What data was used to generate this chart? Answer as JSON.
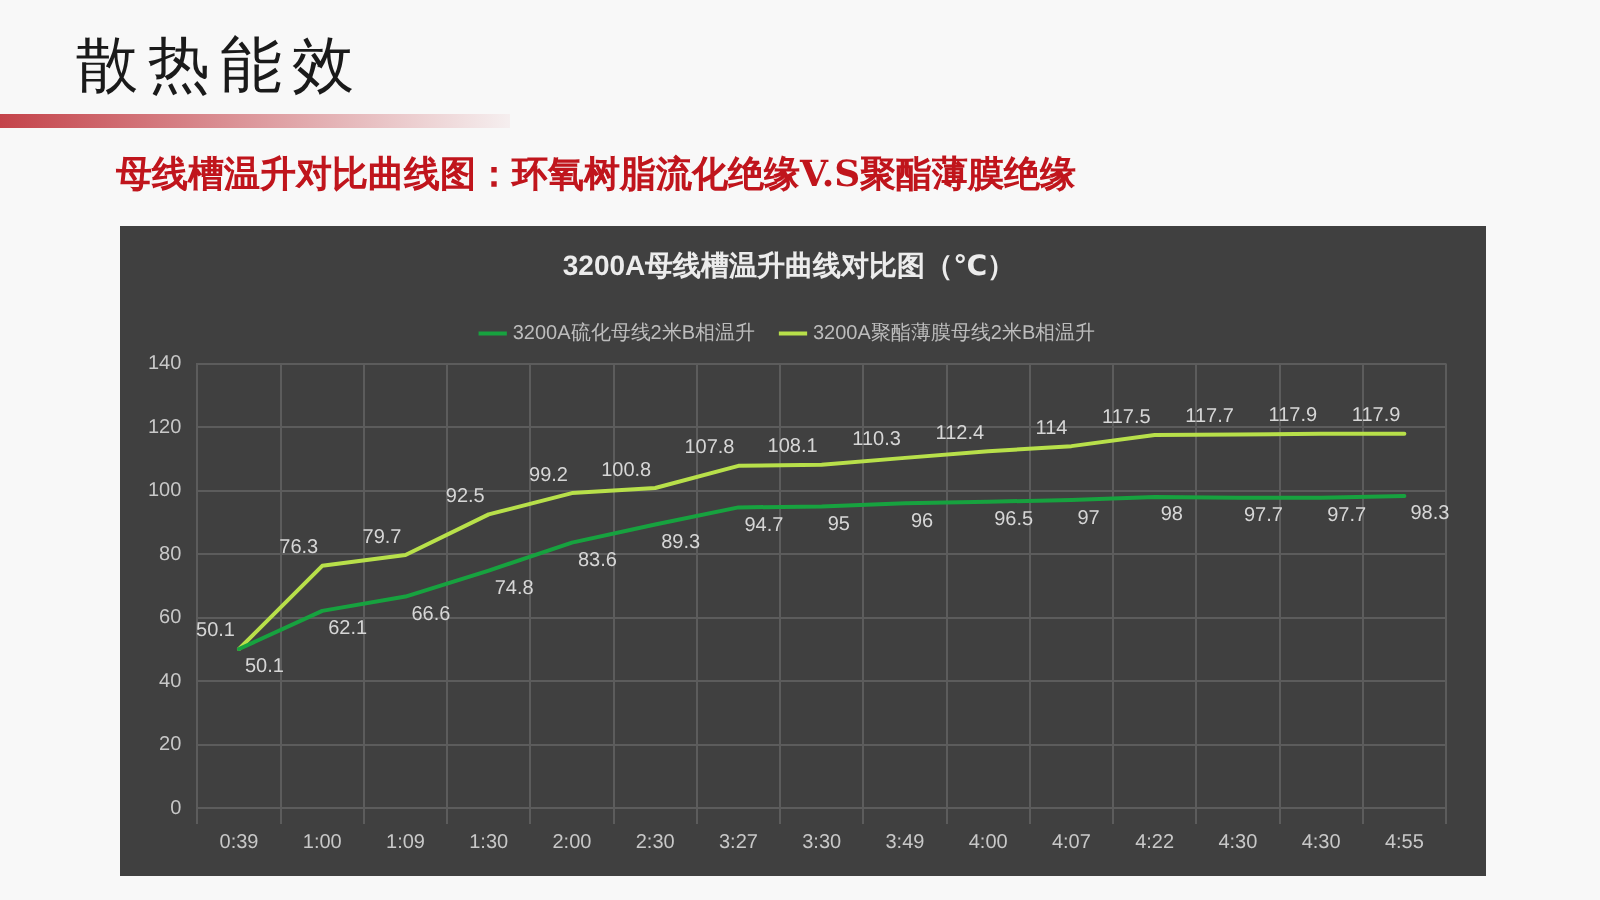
{
  "chart_data": {
    "type": "line",
    "title": "3200A母线槽温升曲线对比图（℃）",
    "subtitle": "母线槽温升对比曲线图：环氧树脂流化绝缘V.S聚酯薄膜绝缘",
    "annotations": [
      "散热能效"
    ],
    "categories": [
      "0:39",
      "1:00",
      "1:09",
      "1:30",
      "2:00",
      "2:30",
      "3:27",
      "3:30",
      "3:49",
      "4:00",
      "4:07",
      "4:22",
      "4:30",
      "4:30",
      "4:55"
    ],
    "series": [
      {
        "name": "3200A硫化母线2米B相温升",
        "color": "#17a23f",
        "values": [
          50.1,
          62.1,
          66.6,
          74.8,
          83.6,
          89.3,
          94.7,
          95,
          96,
          96.5,
          97,
          98,
          97.7,
          97.7,
          98.3
        ]
      },
      {
        "name": "3200A聚酯薄膜母线2米B相温升",
        "color": "#b8e04a",
        "values": [
          50.1,
          76.3,
          79.7,
          92.5,
          99.2,
          100.8,
          107.8,
          108.1,
          110.3,
          112.4,
          114,
          117.5,
          117.7,
          117.9,
          117.9
        ]
      }
    ],
    "ylim": [
      0,
      140
    ],
    "yticks": [
      0,
      20,
      40,
      60,
      80,
      100,
      120,
      140
    ],
    "grid": true,
    "legend": "top",
    "data_labels": true
  }
}
